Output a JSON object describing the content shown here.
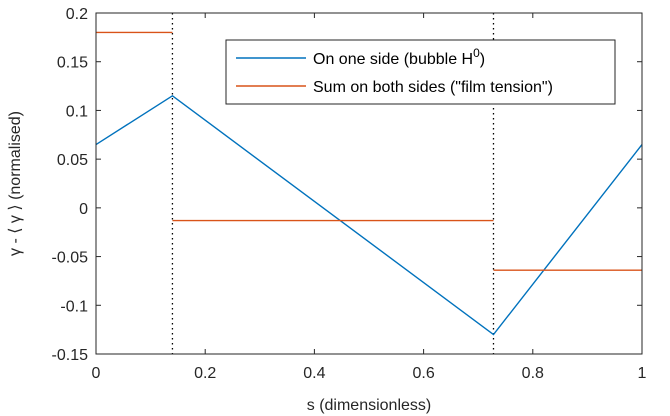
{
  "chart_data": {
    "type": "line",
    "title": "",
    "xlabel": "s (dimensionless)",
    "ylabel": "γ - ⟨ γ ⟩ (normalised)",
    "xlim": [
      0,
      1
    ],
    "ylim": [
      -0.15,
      0.2
    ],
    "xticks": [
      0,
      0.2,
      0.4,
      0.6,
      0.8,
      1
    ],
    "xtick_labels": [
      "0",
      "0.2",
      "0.4",
      "0.6",
      "0.8",
      "1"
    ],
    "yticks": [
      -0.15,
      -0.1,
      -0.05,
      0,
      0.05,
      0.1,
      0.15,
      0.2
    ],
    "ytick_labels": [
      "-0.15",
      "-0.1",
      "-0.05",
      "0",
      "0.05",
      "0.1",
      "0.15",
      "0.2"
    ],
    "grid": false,
    "box": true,
    "legend_position": "top-right",
    "series": [
      {
        "name": "On one side (bubble H⁰)",
        "legend_main": "On one side (bubble H",
        "legend_sup": "0",
        "legend_tail": ")",
        "color": "#0072BD",
        "x": [
          0,
          0.14,
          0.728,
          1
        ],
        "y": [
          0.065,
          0.115,
          -0.13,
          0.065
        ],
        "segments": null
      },
      {
        "name": "Sum on both sides (\"film tension\")",
        "legend_main": "Sum on both sides (\"film tension\")",
        "legend_sup": "",
        "legend_tail": "",
        "color": "#D95319",
        "segments": [
          {
            "x": [
              0,
              0.14
            ],
            "y": [
              0.18,
              0.18
            ]
          },
          {
            "x": [
              0.14,
              0.728
            ],
            "y": [
              -0.013,
              -0.013
            ]
          },
          {
            "x": [
              0.728,
              1
            ],
            "y": [
              -0.064,
              -0.064
            ]
          }
        ]
      }
    ],
    "vlines": [
      {
        "x": 0.14,
        "style": "dotted",
        "color": "#000000"
      },
      {
        "x": 0.728,
        "style": "dotted",
        "color": "#000000"
      }
    ]
  }
}
